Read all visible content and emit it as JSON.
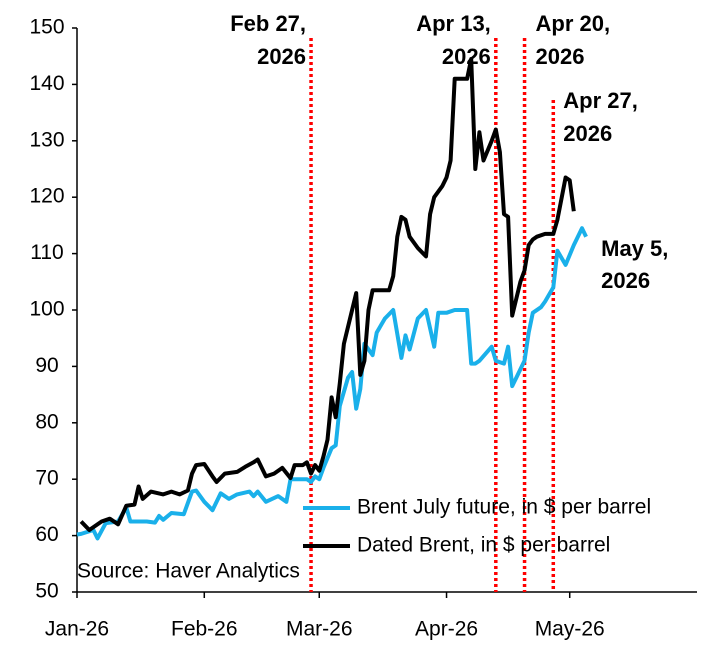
{
  "chart_data": {
    "type": "line",
    "source": "Source: Haver Analytics",
    "xlim": [
      "2026-01-01",
      "2026-06-01"
    ],
    "xticks": [
      {
        "value": "2026-01-01",
        "label": "Jan-26"
      },
      {
        "value": "2026-02-01",
        "label": "Feb-26"
      },
      {
        "value": "2026-03-01",
        "label": "Mar-26"
      },
      {
        "value": "2026-04-01",
        "label": "Apr-26"
      },
      {
        "value": "2026-05-01",
        "label": "May-26"
      }
    ],
    "ylim": [
      50,
      150
    ],
    "yticks": [
      50,
      60,
      70,
      80,
      90,
      100,
      110,
      120,
      130,
      140,
      150
    ],
    "grid": false,
    "series": [
      {
        "name": "Brent July future, in $ per barrel",
        "color": "#1ab0ea",
        "end_label": [
          "May 5,",
          "2026"
        ],
        "x": [
          "2026-01-01",
          "2026-01-02",
          "2026-01-05",
          "2026-01-06",
          "2026-01-08",
          "2026-01-11",
          "2026-01-13",
          "2026-01-14",
          "2026-01-18",
          "2026-01-20",
          "2026-01-21",
          "2026-01-22",
          "2026-01-24",
          "2026-01-27",
          "2026-01-29",
          "2026-01-30",
          "2026-02-01",
          "2026-02-03",
          "2026-02-05",
          "2026-02-07",
          "2026-02-09",
          "2026-02-12",
          "2026-02-13",
          "2026-02-14",
          "2026-02-16",
          "2026-02-19",
          "2026-02-21",
          "2026-02-22",
          "2026-02-26",
          "2026-02-27",
          "2026-02-28",
          "2026-03-01",
          "2026-03-02",
          "2026-03-04",
          "2026-03-05",
          "2026-03-06",
          "2026-03-08",
          "2026-03-09",
          "2026-03-10",
          "2026-03-11",
          "2026-03-12",
          "2026-03-14",
          "2026-03-15",
          "2026-03-17",
          "2026-03-19",
          "2026-03-21",
          "2026-03-22",
          "2026-03-23",
          "2026-03-25",
          "2026-03-27",
          "2026-03-29",
          "2026-03-30",
          "2026-04-01",
          "2026-04-03",
          "2026-04-06",
          "2026-04-07",
          "2026-04-08",
          "2026-04-09",
          "2026-04-12",
          "2026-04-13",
          "2026-04-15",
          "2026-04-16",
          "2026-04-17",
          "2026-04-18",
          "2026-04-20",
          "2026-04-21",
          "2026-04-22",
          "2026-04-24",
          "2026-04-25",
          "2026-04-27",
          "2026-04-28",
          "2026-04-30",
          "2026-05-02",
          "2026-05-04",
          "2026-05-05"
        ],
        "values": [
          60.2,
          60.3,
          61.0,
          59.5,
          62.2,
          62.5,
          65.0,
          62.5,
          62.5,
          62.3,
          63.5,
          62.8,
          64.0,
          63.8,
          67.8,
          68.0,
          66.0,
          64.5,
          67.5,
          66.5,
          67.3,
          67.8,
          67.0,
          67.8,
          66.0,
          67.0,
          66.0,
          70.0,
          70.0,
          69.5,
          70.5,
          70.0,
          72.0,
          75.5,
          76.0,
          83.0,
          88.0,
          89.0,
          82.5,
          86.0,
          94.0,
          92.0,
          96.0,
          98.5,
          100.0,
          91.5,
          95.5,
          93.0,
          98.5,
          100.0,
          93.5,
          99.5,
          99.5,
          100.0,
          100.0,
          90.5,
          90.5,
          91.0,
          93.5,
          91.0,
          90.5,
          93.5,
          86.5,
          88.0,
          91.0,
          96.0,
          99.5,
          100.5,
          101.5,
          104.0,
          110.5,
          108.0,
          111.5,
          114.5,
          113.0
        ]
      },
      {
        "name": "Dated Brent, in $ per barrel",
        "color": "#000000",
        "x": [
          "2026-01-02",
          "2026-01-04",
          "2026-01-07",
          "2026-01-09",
          "2026-01-11",
          "2026-01-13",
          "2026-01-15",
          "2026-01-16",
          "2026-01-17",
          "2026-01-19",
          "2026-01-22",
          "2026-01-24",
          "2026-01-26",
          "2026-01-28",
          "2026-01-29",
          "2026-01-30",
          "2026-02-01",
          "2026-02-03",
          "2026-02-04",
          "2026-02-06",
          "2026-02-09",
          "2026-02-11",
          "2026-02-13",
          "2026-02-14",
          "2026-02-16",
          "2026-02-18",
          "2026-02-20",
          "2026-02-22",
          "2026-02-23",
          "2026-02-25",
          "2026-02-26",
          "2026-02-27",
          "2026-02-28",
          "2026-03-01",
          "2026-03-02",
          "2026-03-03",
          "2026-03-04",
          "2026-03-05",
          "2026-03-06",
          "2026-03-07",
          "2026-03-09",
          "2026-03-10",
          "2026-03-11",
          "2026-03-12",
          "2026-03-13",
          "2026-03-14",
          "2026-03-18",
          "2026-03-19",
          "2026-03-20",
          "2026-03-21",
          "2026-03-22",
          "2026-03-23",
          "2026-03-25",
          "2026-03-27",
          "2026-03-28",
          "2026-03-29",
          "2026-03-31",
          "2026-04-01",
          "2026-04-02",
          "2026-04-03",
          "2026-04-06",
          "2026-04-07",
          "2026-04-08",
          "2026-04-09",
          "2026-04-10",
          "2026-04-12",
          "2026-04-13",
          "2026-04-14",
          "2026-04-15",
          "2026-04-16",
          "2026-04-17",
          "2026-04-18",
          "2026-04-19",
          "2026-04-20",
          "2026-04-21",
          "2026-04-22",
          "2026-04-23",
          "2026-04-25",
          "2026-04-27",
          "2026-04-28",
          "2026-04-30",
          "2026-05-01",
          "2026-05-02"
        ],
        "values": [
          62.5,
          61.0,
          62.5,
          63.0,
          62.0,
          65.3,
          65.5,
          68.7,
          66.5,
          67.8,
          67.3,
          67.8,
          67.3,
          68.0,
          71.0,
          72.5,
          72.7,
          70.5,
          69.5,
          71.0,
          71.3,
          72.2,
          73.0,
          73.5,
          70.5,
          71.0,
          72.0,
          70.2,
          72.5,
          72.5,
          73.0,
          71.0,
          72.5,
          71.5,
          74.0,
          77.0,
          84.5,
          81.0,
          87.0,
          94.0,
          100.0,
          103.0,
          88.5,
          91.0,
          100.0,
          103.5,
          103.5,
          106.0,
          113.0,
          116.5,
          116.0,
          113.0,
          111.0,
          109.5,
          117.0,
          120.0,
          122.0,
          123.5,
          126.5,
          141.0,
          141.0,
          144.5,
          125.0,
          131.5,
          126.5,
          130.0,
          132.0,
          128.0,
          117.0,
          116.5,
          99.0,
          102.0,
          105.0,
          107.0,
          111.5,
          112.5,
          113.0,
          113.5,
          113.5,
          116.0,
          123.5,
          123.0,
          117.5
        ]
      }
    ],
    "annotations": [
      {
        "x": "2026-02-27",
        "label": [
          "Feb 27,",
          "2026"
        ],
        "color": "#ff0000"
      },
      {
        "x": "2026-04-13",
        "label": [
          "Apr 13,",
          "2026"
        ],
        "color": "#ff0000"
      },
      {
        "x": "2026-04-20",
        "label": [
          "Apr 20,",
          "2026"
        ],
        "color": "#ff0000"
      },
      {
        "x": "2026-04-27",
        "label": [
          "Apr 27,",
          "2026"
        ],
        "color": "#ff0000"
      }
    ]
  }
}
